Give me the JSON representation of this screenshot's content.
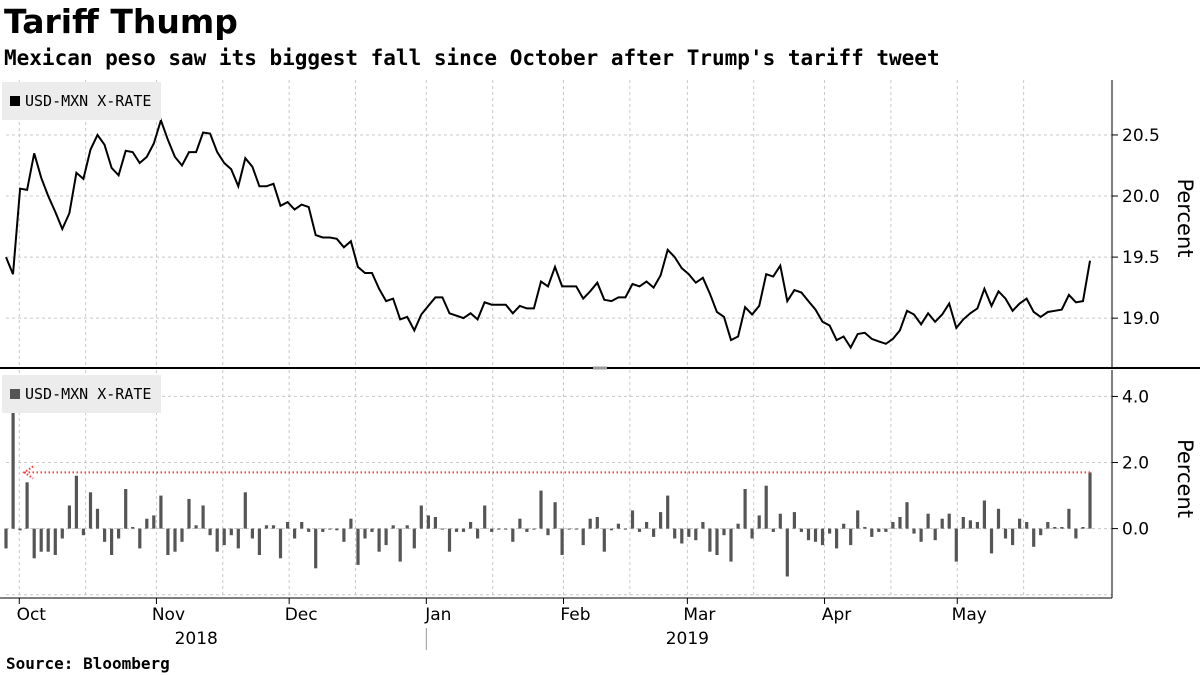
{
  "header": {
    "title": "Tariff Thump",
    "subtitle": "Mexican peso saw its biggest fall since October after Trump's tariff tweet"
  },
  "footer": {
    "source": "Source: Bloomberg"
  },
  "colors": {
    "line": "#000000",
    "bar": "#555555",
    "grid": "#c8c8c8",
    "annotation": "#ff3b3b",
    "legend_bg": "#ececec"
  },
  "chart_data": [
    {
      "type": "line",
      "legend": "USD-MXN X-RATE",
      "ylabel": "Percent",
      "ylim": [
        18.6,
        20.95
      ],
      "yticks": [
        19.0,
        19.5,
        20.0,
        20.5
      ],
      "ytick_labels": [
        "19.0",
        "19.5",
        "20.0",
        "20.5"
      ],
      "x_start": "2018-09-28",
      "x_end": "2019-05-31",
      "series": [
        {
          "values": [
            19.5,
            19.36,
            20.06,
            20.05,
            20.35,
            20.15,
            20.0,
            19.87,
            19.73,
            19.86,
            20.19,
            20.14,
            20.38,
            20.5,
            20.42,
            20.23,
            20.17,
            20.37,
            20.36,
            20.27,
            20.32,
            20.43,
            20.62,
            20.46,
            20.32,
            20.25,
            20.36,
            20.36,
            20.52,
            20.51,
            20.36,
            20.27,
            20.22,
            20.08,
            20.31,
            20.24,
            20.08,
            20.08,
            20.1,
            19.92,
            19.95,
            19.89,
            19.93,
            19.91,
            19.68,
            19.66,
            19.66,
            19.65,
            19.58,
            19.63,
            19.42,
            19.37,
            19.37,
            19.24,
            19.14,
            19.16,
            18.99,
            19.01,
            18.9,
            19.03,
            19.1,
            19.17,
            19.17,
            19.04,
            19.02,
            19.0,
            19.04,
            18.99,
            19.13,
            19.11,
            19.11,
            19.11,
            19.04,
            19.1,
            19.08,
            19.08,
            19.3,
            19.26,
            19.42,
            19.26,
            19.26,
            19.26,
            19.16,
            19.22,
            19.29,
            19.15,
            19.14,
            19.17,
            19.17,
            19.28,
            19.26,
            19.3,
            19.25,
            19.35,
            19.56,
            19.5,
            19.41,
            19.36,
            19.29,
            19.33,
            19.2,
            19.05,
            19.01,
            18.82,
            18.85,
            19.09,
            19.03,
            19.1,
            19.36,
            19.34,
            19.43,
            19.14,
            19.23,
            19.21,
            19.14,
            19.07,
            18.97,
            18.94,
            18.82,
            18.85,
            18.76,
            18.87,
            18.88,
            18.83,
            18.81,
            18.79,
            18.83,
            18.9,
            19.06,
            19.03,
            18.95,
            19.04,
            18.97,
            19.03,
            19.12,
            18.92,
            18.99,
            19.04,
            19.08,
            19.24,
            19.1,
            19.22,
            19.16,
            19.06,
            19.12,
            19.16,
            19.05,
            19.01,
            19.05,
            19.06,
            19.07,
            19.19,
            19.13,
            19.14,
            19.47
          ]
        }
      ]
    },
    {
      "type": "bar",
      "legend": "USD-MXN X-RATE",
      "ylabel": "Percent",
      "ylim": [
        -2.1,
        4.8
      ],
      "yticks": [
        0.0,
        2.0,
        4.0
      ],
      "ytick_labels": [
        "0.0",
        "2.0",
        "4.0"
      ],
      "x_start": "2018-09-28",
      "x_end": "2019-05-31",
      "series": [
        {
          "values": [
            -0.6,
            3.6,
            -0.05,
            1.4,
            -0.9,
            -0.7,
            -0.7,
            -0.8,
            -0.3,
            0.7,
            1.6,
            -0.2,
            1.1,
            0.6,
            -0.4,
            -0.8,
            -0.3,
            1.2,
            0.05,
            -0.6,
            0.3,
            0.4,
            1.0,
            -0.8,
            -0.7,
            -0.4,
            0.9,
            0.1,
            0.7,
            -0.2,
            -0.7,
            -0.5,
            -0.2,
            -0.6,
            1.1,
            -0.3,
            -0.8,
            0.1,
            0.1,
            -0.9,
            0.2,
            -0.3,
            0.2,
            -0.1,
            -1.2,
            -0.1,
            0.0,
            -0.05,
            -0.4,
            0.3,
            -1.1,
            -0.3,
            -0.1,
            -0.7,
            -0.5,
            0.1,
            -1.0,
            0.1,
            -0.6,
            0.7,
            0.4,
            0.35,
            0.0,
            -0.7,
            -0.1,
            -0.1,
            0.2,
            -0.3,
            0.7,
            -0.1,
            0.0,
            0.0,
            -0.4,
            0.3,
            -0.1,
            0.0,
            1.15,
            -0.2,
            0.8,
            -0.8,
            0.0,
            0.0,
            -0.5,
            0.3,
            0.35,
            -0.7,
            -0.05,
            0.15,
            0.0,
            0.55,
            -0.1,
            0.2,
            -0.25,
            0.5,
            1.0,
            -0.3,
            -0.45,
            -0.25,
            -0.35,
            0.2,
            -0.7,
            -0.8,
            -0.2,
            -1.0,
            0.15,
            1.2,
            -0.3,
            0.4,
            1.3,
            -0.1,
            0.45,
            -1.45,
            0.5,
            -0.1,
            -0.35,
            -0.4,
            -0.5,
            -0.15,
            -0.6,
            0.15,
            -0.5,
            0.55,
            0.05,
            -0.25,
            -0.1,
            -0.1,
            0.2,
            0.35,
            0.8,
            -0.15,
            -0.4,
            0.45,
            -0.35,
            0.3,
            0.45,
            -1.0,
            0.35,
            0.25,
            0.2,
            0.85,
            -0.75,
            0.6,
            -0.3,
            -0.5,
            0.3,
            0.2,
            -0.55,
            -0.2,
            0.2,
            0.05,
            0.05,
            0.6,
            -0.3,
            0.05,
            1.7
          ]
        }
      ],
      "annotation": "dotted arrow from latest bar back to early October"
    }
  ],
  "x_axis": {
    "month_ticks": [
      {
        "label": "Oct",
        "date": "2018-10-01"
      },
      {
        "label": "Nov",
        "date": "2018-11-01"
      },
      {
        "label": "Dec",
        "date": "2018-12-01"
      },
      {
        "label": "Jan",
        "date": "2019-01-01"
      },
      {
        "label": "Feb",
        "date": "2019-02-01"
      },
      {
        "label": "Mar",
        "date": "2019-03-01"
      },
      {
        "label": "Apr",
        "date": "2019-04-01"
      },
      {
        "label": "May",
        "date": "2019-05-01"
      }
    ],
    "years": [
      {
        "label": "2018",
        "date": "2018-11-10"
      },
      {
        "label": "2019",
        "date": "2019-03-01"
      }
    ],
    "year_divider": "2019-01-01"
  }
}
